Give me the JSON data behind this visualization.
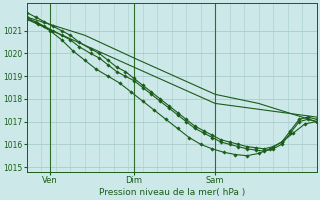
{
  "title": "Pression niveau de la mer( hPa )",
  "bg_color": "#cce8e8",
  "grid_color": "#aacccc",
  "line_color": "#1a5c1a",
  "vline_color": "#2d6e2d",
  "ylim": [
    1014.8,
    1022.2
  ],
  "yticks": [
    1015,
    1016,
    1017,
    1018,
    1019,
    1020,
    1021
  ],
  "xtick_labels": [
    "Ven",
    "Dim",
    "Sam"
  ],
  "xtick_positions": [
    0.08,
    0.37,
    0.65
  ],
  "xlim": [
    0,
    1.0
  ],
  "series": [
    {
      "x": [
        0.0,
        0.03,
        0.06,
        0.09,
        0.12,
        0.15,
        0.18,
        0.22,
        0.25,
        0.28,
        0.31,
        0.34,
        0.37,
        0.4,
        0.43,
        0.46,
        0.49,
        0.52,
        0.55,
        0.58,
        0.61,
        0.64,
        0.67,
        0.7,
        0.73,
        0.76,
        0.79,
        0.82,
        0.85,
        0.88,
        0.91,
        0.94,
        0.97,
        1.0
      ],
      "y": [
        1021.5,
        1021.4,
        1021.2,
        1021.0,
        1020.8,
        1020.6,
        1020.3,
        1020.0,
        1019.8,
        1019.5,
        1019.2,
        1019.0,
        1018.8,
        1018.5,
        1018.2,
        1017.9,
        1017.6,
        1017.3,
        1017.0,
        1016.7,
        1016.5,
        1016.3,
        1016.1,
        1016.0,
        1015.9,
        1015.8,
        1015.75,
        1015.7,
        1015.8,
        1016.0,
        1016.5,
        1017.0,
        1017.1,
        1017.0
      ]
    },
    {
      "x": [
        0.0,
        0.03,
        0.06,
        0.09,
        0.12,
        0.15,
        0.18,
        0.22,
        0.25,
        0.28,
        0.31,
        0.34,
        0.37,
        0.4,
        0.43,
        0.46,
        0.49,
        0.52,
        0.55,
        0.58,
        0.61,
        0.64,
        0.67,
        0.7,
        0.73,
        0.76,
        0.79,
        0.82,
        0.85,
        0.88,
        0.91,
        0.94,
        0.97,
        1.0
      ],
      "y": [
        1021.8,
        1021.6,
        1021.4,
        1021.2,
        1021.0,
        1020.8,
        1020.5,
        1020.2,
        1020.0,
        1019.7,
        1019.4,
        1019.2,
        1018.9,
        1018.6,
        1018.3,
        1018.0,
        1017.7,
        1017.4,
        1017.1,
        1016.8,
        1016.6,
        1016.4,
        1016.2,
        1016.1,
        1016.0,
        1015.9,
        1015.85,
        1015.8,
        1015.9,
        1016.1,
        1016.6,
        1017.1,
        1017.2,
        1017.1
      ]
    },
    {
      "x": [
        0.0,
        0.04,
        0.08,
        0.12,
        0.16,
        0.2,
        0.24,
        0.28,
        0.32,
        0.36,
        0.4,
        0.44,
        0.48,
        0.52,
        0.56,
        0.6,
        0.64,
        0.68,
        0.72,
        0.76,
        0.8,
        0.84,
        0.88,
        0.92,
        0.96,
        1.0
      ],
      "y": [
        1021.6,
        1021.3,
        1021.0,
        1020.6,
        1020.1,
        1019.7,
        1019.3,
        1019.0,
        1018.7,
        1018.3,
        1017.9,
        1017.5,
        1017.1,
        1016.7,
        1016.3,
        1016.0,
        1015.8,
        1015.65,
        1015.55,
        1015.5,
        1015.6,
        1015.8,
        1016.1,
        1016.5,
        1016.9,
        1017.0
      ]
    },
    {
      "x": [
        0.0,
        0.2,
        0.37,
        0.65,
        0.8,
        1.0
      ],
      "y": [
        1021.6,
        1020.8,
        1019.8,
        1018.2,
        1017.8,
        1017.0
      ]
    },
    {
      "x": [
        0.0,
        0.65,
        1.0
      ],
      "y": [
        1021.5,
        1017.8,
        1017.2
      ]
    }
  ]
}
